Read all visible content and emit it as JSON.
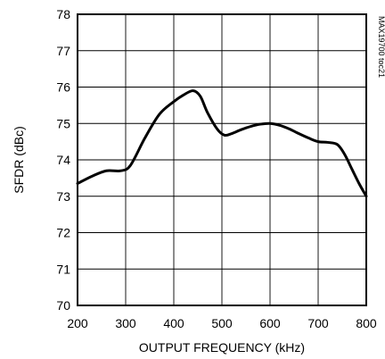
{
  "chart_data": {
    "type": "line",
    "title": "",
    "xlabel": "OUTPUT FREQUENCY (kHz)",
    "ylabel": "SFDR (dBc)",
    "side_note": "MAX19700 toc21",
    "xlim": [
      200,
      800
    ],
    "ylim": [
      70,
      78
    ],
    "x_ticks": [
      200,
      300,
      400,
      500,
      600,
      700,
      800
    ],
    "y_ticks": [
      70,
      71,
      72,
      73,
      74,
      75,
      76,
      77,
      78
    ],
    "grid": true,
    "series": [
      {
        "x": [
          200,
          230,
          260,
          290,
          310,
          340,
          370,
          400,
          420,
          440,
          455,
          470,
          490,
          505,
          520,
          540,
          560,
          580,
          600,
          620,
          640,
          660,
          680,
          700,
          720,
          740,
          755,
          770,
          785,
          800
        ],
        "y": [
          73.35,
          73.55,
          73.7,
          73.7,
          73.85,
          74.6,
          75.25,
          75.6,
          75.78,
          75.9,
          75.75,
          75.3,
          74.85,
          74.68,
          74.72,
          74.83,
          74.92,
          74.98,
          75.0,
          74.95,
          74.85,
          74.72,
          74.6,
          74.5,
          74.48,
          74.42,
          74.15,
          73.75,
          73.35,
          73.0
        ]
      }
    ]
  }
}
